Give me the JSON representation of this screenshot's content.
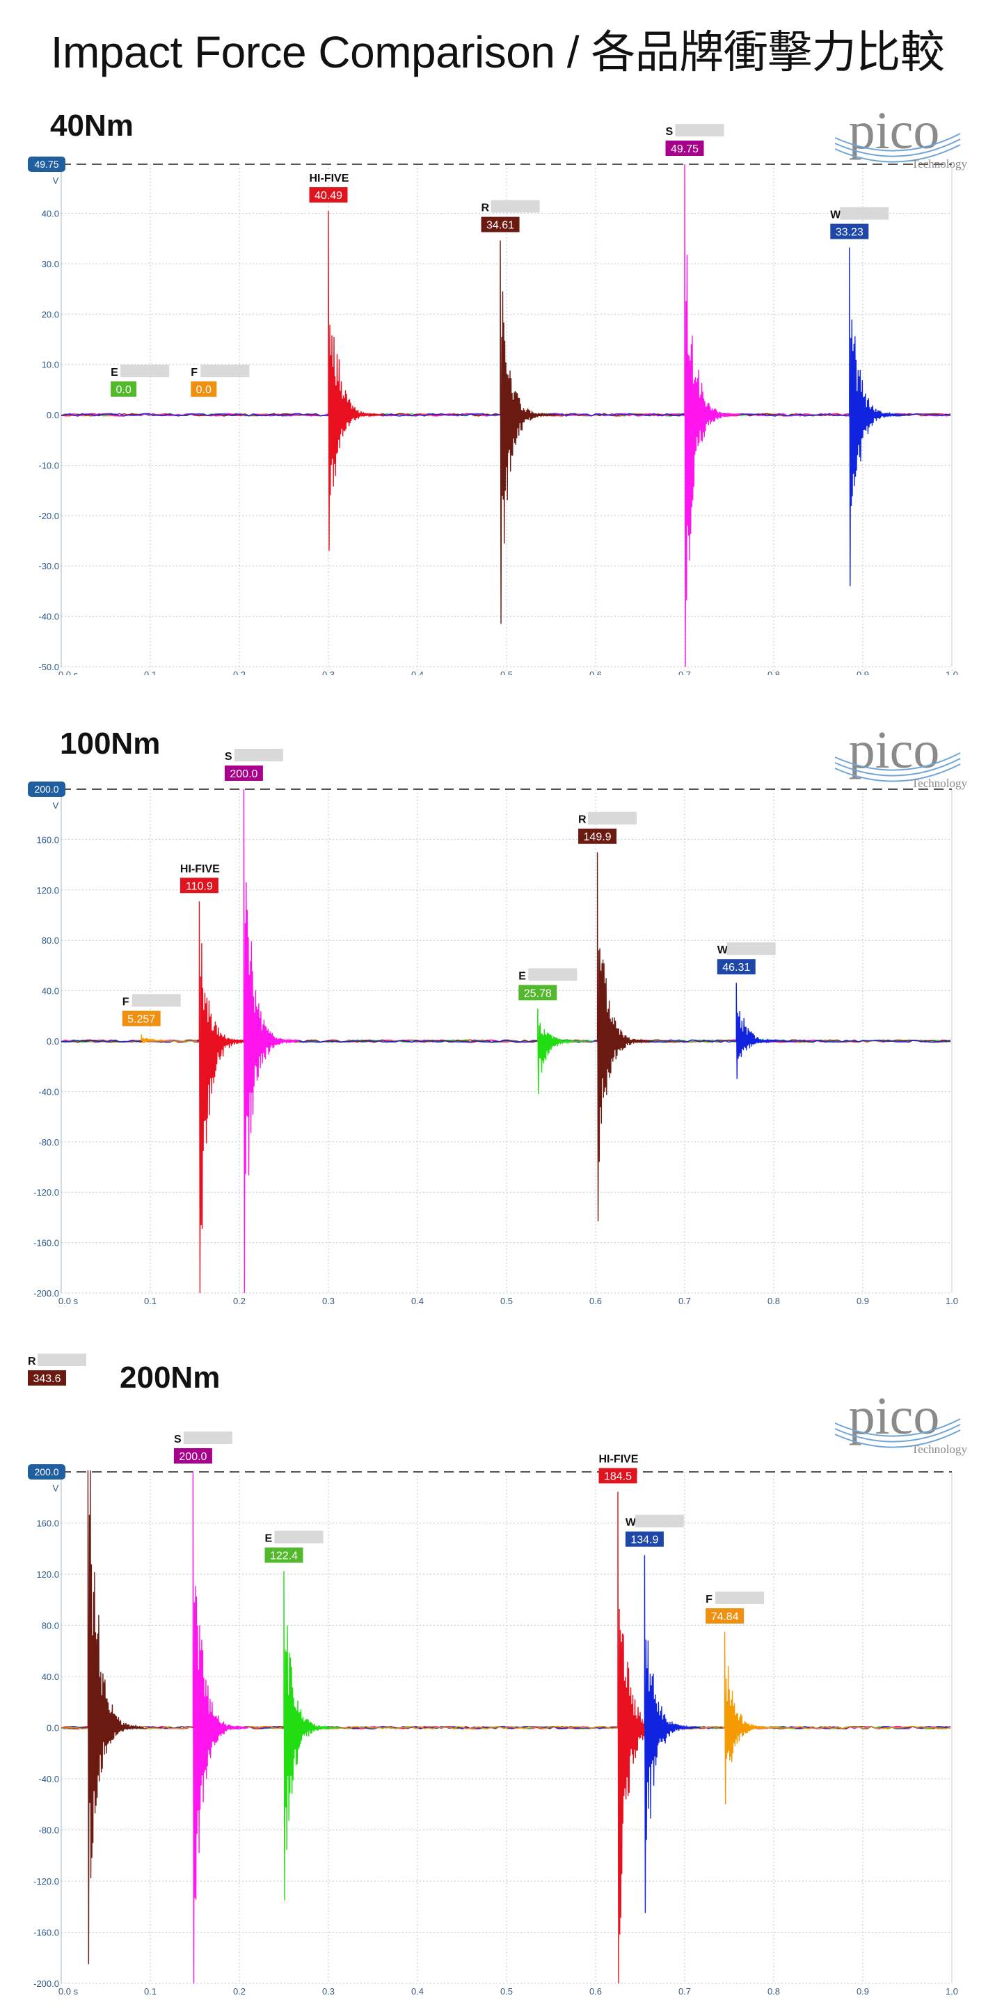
{
  "title": "Impact Force Comparison / 各品牌衝擊力比較",
  "logo": {
    "word": "pico",
    "sub": "Technology"
  },
  "x_unit": "s",
  "y_unit": "V",
  "colors": {
    "hifive": "#e8101e",
    "r": "#6b1a12",
    "s": "#ff14ee",
    "w": "#1024e0",
    "e": "#22dd11",
    "f": "#f59a00",
    "badge_hifive": "#e0141e",
    "badge_r": "#6b1a12",
    "badge_s": "#a8008c",
    "badge_w": "#1f47a8",
    "badge_e": "#52b82c",
    "badge_f": "#f09010"
  },
  "chart_data": [
    {
      "type": "line",
      "panel_label": "40Nm",
      "xlim": [
        0,
        1.0
      ],
      "ylim": [
        -50,
        49.75
      ],
      "x_ticks": [
        0,
        0.1,
        0.2,
        0.3,
        0.4,
        0.5,
        0.6,
        0.7,
        0.8,
        0.9,
        1.0
      ],
      "x_tick_labels": [
        "0.0 s",
        "0.1",
        "0.2",
        "0.3",
        "0.4",
        "0.5",
        "0.6",
        "0.7",
        "0.8",
        "0.9",
        "1.0"
      ],
      "y_ticks": [
        40,
        30,
        20,
        10,
        0,
        -10,
        -20,
        -30,
        -40,
        -50
      ],
      "y_tick_labels": [
        "40.0",
        "30.0",
        "20.0",
        "10.0",
        "0.0",
        "-10.0",
        "-20.0",
        "-30.0",
        "-40.0",
        "-50.0"
      ],
      "ref_line": {
        "value": 49.75,
        "label": "49.75"
      },
      "series": [
        {
          "name": "E",
          "color_key": "e",
          "badge_key": "badge_e",
          "peak_x": 0.07,
          "peak": 0.0,
          "min": 0.0,
          "peak_label": "0.0"
        },
        {
          "name": "F",
          "color_key": "f",
          "badge_key": "badge_f",
          "peak_x": 0.16,
          "peak": 0.0,
          "min": 0.0,
          "peak_label": "0.0"
        },
        {
          "name": "HI-FIVE",
          "color_key": "hifive",
          "badge_key": "badge_hifive",
          "peak_x": 0.3,
          "peak": 40.49,
          "min": -27,
          "peak_label": "40.49"
        },
        {
          "name": "R",
          "color_key": "r",
          "badge_key": "badge_r",
          "peak_x": 0.493,
          "peak": 34.61,
          "min": -41.5,
          "peak_label": "34.61"
        },
        {
          "name": "S",
          "color_key": "s",
          "badge_key": "badge_s",
          "peak_x": 0.7,
          "peak": 49.75,
          "min": -50,
          "peak_label": "49.75"
        },
        {
          "name": "W",
          "color_key": "w",
          "badge_key": "badge_w",
          "peak_x": 0.885,
          "peak": 33.23,
          "min": -34,
          "peak_label": "33.23"
        }
      ]
    },
    {
      "type": "line",
      "panel_label": "100Nm",
      "xlim": [
        0,
        1.0
      ],
      "ylim": [
        -200,
        200
      ],
      "x_ticks": [
        0,
        0.1,
        0.2,
        0.3,
        0.4,
        0.5,
        0.6,
        0.7,
        0.8,
        0.9,
        1.0
      ],
      "x_tick_labels": [
        "0.0 s",
        "0.1",
        "0.2",
        "0.3",
        "0.4",
        "0.5",
        "0.6",
        "0.7",
        "0.8",
        "0.9",
        "1.0"
      ],
      "y_ticks": [
        160,
        120,
        80,
        40,
        0,
        -40,
        -80,
        -120,
        -160,
        -200
      ],
      "y_tick_labels": [
        "160.0",
        "120.0",
        "80.0",
        "40.0",
        "0.0",
        "-40.0",
        "-80.0",
        "-120.0",
        "-160.0",
        "-200.0"
      ],
      "ref_line": {
        "value": 200,
        "label": "200.0"
      },
      "series": [
        {
          "name": "F",
          "color_key": "f",
          "badge_key": "badge_f",
          "peak_x": 0.09,
          "peak": 5.257,
          "min": 0,
          "peak_label": "5.257"
        },
        {
          "name": "HI-FIVE",
          "color_key": "hifive",
          "badge_key": "badge_hifive",
          "peak_x": 0.155,
          "peak": 110.9,
          "min": -200,
          "peak_label": "110.9"
        },
        {
          "name": "S",
          "color_key": "s",
          "badge_key": "badge_s",
          "peak_x": 0.205,
          "peak": 200.0,
          "min": -200,
          "peak_label": "200.0"
        },
        {
          "name": "E",
          "color_key": "e",
          "badge_key": "badge_e",
          "peak_x": 0.535,
          "peak": 25.78,
          "min": -42,
          "peak_label": "25.78"
        },
        {
          "name": "R",
          "color_key": "r",
          "badge_key": "badge_r",
          "peak_x": 0.602,
          "peak": 149.9,
          "min": -143,
          "peak_label": "149.9"
        },
        {
          "name": "W",
          "color_key": "w",
          "badge_key": "badge_w",
          "peak_x": 0.758,
          "peak": 46.31,
          "min": -30,
          "peak_label": "46.31"
        }
      ]
    },
    {
      "type": "line",
      "panel_label": "200Nm",
      "xlim": [
        0,
        1.0
      ],
      "ylim": [
        -200,
        200
      ],
      "x_ticks": [
        0,
        0.1,
        0.2,
        0.3,
        0.4,
        0.5,
        0.6,
        0.7,
        0.8,
        0.9,
        1.0
      ],
      "x_tick_labels": [
        "0.0 s",
        "0.1",
        "0.2",
        "0.3",
        "0.4",
        "0.5",
        "0.6",
        "0.7",
        "0.8",
        "0.9",
        "1.0"
      ],
      "y_ticks": [
        160,
        120,
        80,
        40,
        0,
        -40,
        -80,
        -120,
        -160,
        -200
      ],
      "y_tick_labels": [
        "160.0",
        "120.0",
        "80.0",
        "40.0",
        "0.0",
        "-40.0",
        "-80.0",
        "-120.0",
        "-160.0",
        "-200.0"
      ],
      "ref_line": {
        "value": 200,
        "label": "200.0"
      },
      "series": [
        {
          "name": "R",
          "color_key": "r",
          "badge_key": "badge_r",
          "peak_x": 0.03,
          "peak": 343.6,
          "min": -185,
          "peak_label": "343.6"
        },
        {
          "name": "S",
          "color_key": "s",
          "badge_key": "badge_s",
          "peak_x": 0.148,
          "peak": 200.0,
          "min": -200,
          "peak_label": "200.0"
        },
        {
          "name": "E",
          "color_key": "e",
          "badge_key": "badge_e",
          "peak_x": 0.25,
          "peak": 122.4,
          "min": -135,
          "peak_label": "122.4"
        },
        {
          "name": "HI-FIVE",
          "color_key": "hifive",
          "badge_key": "badge_hifive",
          "peak_x": 0.625,
          "peak": 184.5,
          "min": -200,
          "peak_label": "184.5"
        },
        {
          "name": "W",
          "color_key": "w",
          "badge_key": "badge_w",
          "peak_x": 0.655,
          "peak": 134.9,
          "min": -145,
          "peak_label": "134.9"
        },
        {
          "name": "F",
          "color_key": "f",
          "badge_key": "badge_f",
          "peak_x": 0.745,
          "peak": 74.84,
          "min": -60,
          "peak_label": "74.84"
        }
      ]
    }
  ]
}
